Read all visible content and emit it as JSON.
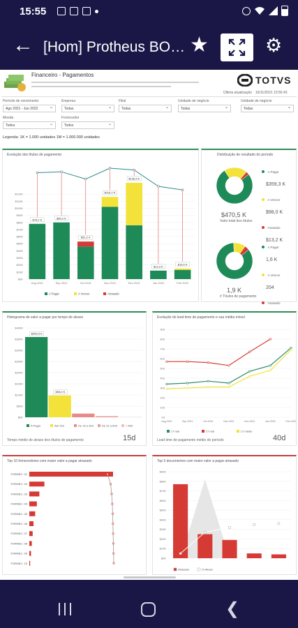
{
  "status": {
    "time": "15:55"
  },
  "app": {
    "title": "[Hom] Protheus BO…"
  },
  "report": {
    "title": "Financeiro - Pagamentos",
    "brand": "TOTVS",
    "last_update_label": "Última atualização",
    "last_update_value": "16/11/2021   15:55:43",
    "legend_note": "Legenda: 1K = 1.000 unidades  1M = 1.000.000 unidades"
  },
  "filters": [
    {
      "label": "Período de vencimento",
      "value": "Ago 2021 - Jun 2022"
    },
    {
      "label": "Empresa",
      "value": "Todas"
    },
    {
      "label": "Filial",
      "value": "Todas"
    },
    {
      "label": "Unidade de negócio",
      "value": "Todas"
    },
    {
      "label": "Unidade de negócio",
      "value": "Todas"
    },
    {
      "label": "Moeda",
      "value": "Todos"
    },
    {
      "label": "Fornecedor",
      "value": "Todos"
    }
  ],
  "colors": {
    "green": "#1e8a57",
    "yellow": "#f2e23a",
    "red": "#d63a34",
    "gray": "#9a9a9a"
  },
  "panels": {
    "evolution": {
      "title": "Evolução dos títulos de pagamento",
      "legend": [
        "A Pagar",
        "A Vencer",
        "Atrasado"
      ]
    },
    "distribution": {
      "title": "Distribuição de resultado do período",
      "donut1": {
        "rows": [
          [
            "A Pagar",
            "$359,3 K"
          ],
          [
            "A Vencer",
            "$98,0 K"
          ],
          [
            "Atrasado",
            "$13,2 K"
          ]
        ],
        "total": "$470,5 K",
        "total_label": "Valor total dos títulos"
      },
      "donut2": {
        "rows": [
          [
            "A Pagar",
            "1,6 K"
          ],
          [
            "A Vencer",
            "204"
          ],
          [
            "Atrasado",
            "80"
          ]
        ],
        "total": "1,9 K",
        "total_label": "# Títulos de pagamento"
      }
    },
    "histogram": {
      "title": "Histograma de valor a pagar por tempo de atraso",
      "legend": [
        "A Pagar",
        "Até 15d",
        "De 16 a 30d",
        "De 31 a 60d",
        "> 60d"
      ],
      "footer": "Tempo médio de atraso dos títulos de pagamento",
      "big": "15d"
    },
    "leadtime": {
      "title": "Evolução do lead time de pagamento e sua média móvel",
      "footer": "Lead time de pagamento médio do período",
      "big": "40d"
    },
    "top10": {
      "title": "Top 10 fornecedores com maior valor a pagar atrasado"
    },
    "top5": {
      "title": "Top 5 documentos com maior valor a pagar atrasado",
      "legend": [
        "Atrasado",
        "% Atraso"
      ]
    }
  },
  "chart_data": [
    {
      "type": "bar",
      "title": "Evolução dos títulos de pagamento",
      "categories": [
        "Aug 2021",
        "Sep 2021",
        "Oct 2021",
        "Nov 2021",
        "Dec 2021",
        "Jan 2022",
        "Feb 2022"
      ],
      "series": [
        {
          "name": "A Pagar",
          "values": [
            78,
            80,
            46,
            102,
            76,
            12,
            13
          ]
        },
        {
          "name": "A Vencer",
          "values": [
            0,
            0,
            0,
            14,
            60,
            0,
            2
          ]
        },
        {
          "name": "Atrasado",
          "values": [
            0,
            0,
            7,
            0,
            0,
            0,
            0
          ]
        }
      ],
      "totals_labels": [
        "$78,2 K",
        "$80,2 K",
        "$51,2 K",
        "$116,2 K",
        "$136,9 K",
        "$12,3 K",
        "$15,6 K"
      ],
      "count_line": [
        55,
        56,
        48,
        60,
        58,
        40,
        36
      ],
      "y_ticks": [
        "$0K",
        "$10K",
        "$20K",
        "$30K",
        "$40K",
        "$50K",
        "$60K",
        "$70K",
        "$80K",
        "$90K",
        "$100K",
        "$110K",
        "$120K"
      ],
      "ylim": [
        0,
        130
      ]
    },
    {
      "type": "pie",
      "title": "Valor total dos títulos",
      "labels": [
        "A Pagar",
        "A Vencer",
        "Atrasado"
      ],
      "values": [
        359.3,
        98.0,
        13.2
      ]
    },
    {
      "type": "pie",
      "title": "# Títulos de pagamento",
      "labels": [
        "A Pagar",
        "A Vencer",
        "Atrasado"
      ],
      "values": [
        1600,
        204,
        80
      ]
    },
    {
      "type": "bar",
      "title": "Histograma de valor a pagar por tempo de atraso",
      "categories": [
        "A Pagar",
        "Até 15d",
        "De 16 a 30d",
        "De 31 a 60d",
        "> 60d"
      ],
      "values": [
        359.3,
        98.0,
        16.5,
        5.0,
        1.0
      ],
      "value_labels": [
        "$359,3 K",
        "$98,0 K",
        "",
        "",
        ""
      ],
      "y_ticks": [
        "$0K",
        "$50K",
        "$100K",
        "$150K",
        "$200K",
        "$250K",
        "$300K",
        "$350K",
        "$400K"
      ],
      "ylim": [
        0,
        400
      ]
    },
    {
      "type": "line",
      "title": "Evolução do lead time de pagamento e sua média móvel",
      "categories": [
        "Aug 2021",
        "Sep 2021",
        "Oct 2021",
        "Nov 2021",
        "Dec 2021",
        "Jan 2022",
        "Feb 2022"
      ],
      "series": [
        {
          "name": "LT real",
          "values": [
            34,
            35,
            37,
            35,
            47,
            53,
            71
          ]
        },
        {
          "name": "LT real",
          "values": [
            57,
            57,
            56,
            53,
            67,
            80,
            0
          ]
        },
        {
          "name": "LT médio",
          "values": [
            29,
            30,
            31,
            31,
            42,
            48,
            69
          ]
        }
      ],
      "y_ticks": [
        "0d",
        "10d",
        "20d",
        "30d",
        "40d",
        "50d",
        "60d",
        "70d",
        "80d",
        "90d"
      ],
      "ylim": [
        0,
        90
      ]
    },
    {
      "type": "bar",
      "title": "Top 10 fornecedores com maior valor a pagar atrasado",
      "categories": [
        "FORNEC. 01",
        "FORNEC. 02",
        "FORNEC. 03",
        "FORNEC. 04",
        "FORNEC. 05",
        "FORNEC. 06",
        "FORNEC. 07",
        "FORNEC. 08",
        "FORNEC. 09",
        "FORNEC. 10"
      ],
      "values": [
        100,
        18,
        12,
        9,
        7,
        5,
        4,
        3,
        2,
        1
      ],
      "cumulative": [
        70,
        85,
        90,
        93,
        95,
        96,
        97,
        98,
        99,
        100
      ]
    },
    {
      "type": "bar",
      "title": "Top 5 documentos com maior valor a pagar atrasado",
      "categories": [
        "Doc 1",
        "Doc 2",
        "Doc 3",
        "Doc 4",
        "Doc 5"
      ],
      "values": [
        77,
        25,
        19,
        5,
        4
      ],
      "pct_line": [
        5,
        27,
        32,
        35,
        36
      ],
      "y_ticks": [
        "$0K",
        "$10K",
        "$20K",
        "$30K",
        "$40K",
        "$50K",
        "$60K",
        "$70K",
        "$80K",
        "$90K"
      ],
      "ylim": [
        0,
        90
      ]
    }
  ]
}
